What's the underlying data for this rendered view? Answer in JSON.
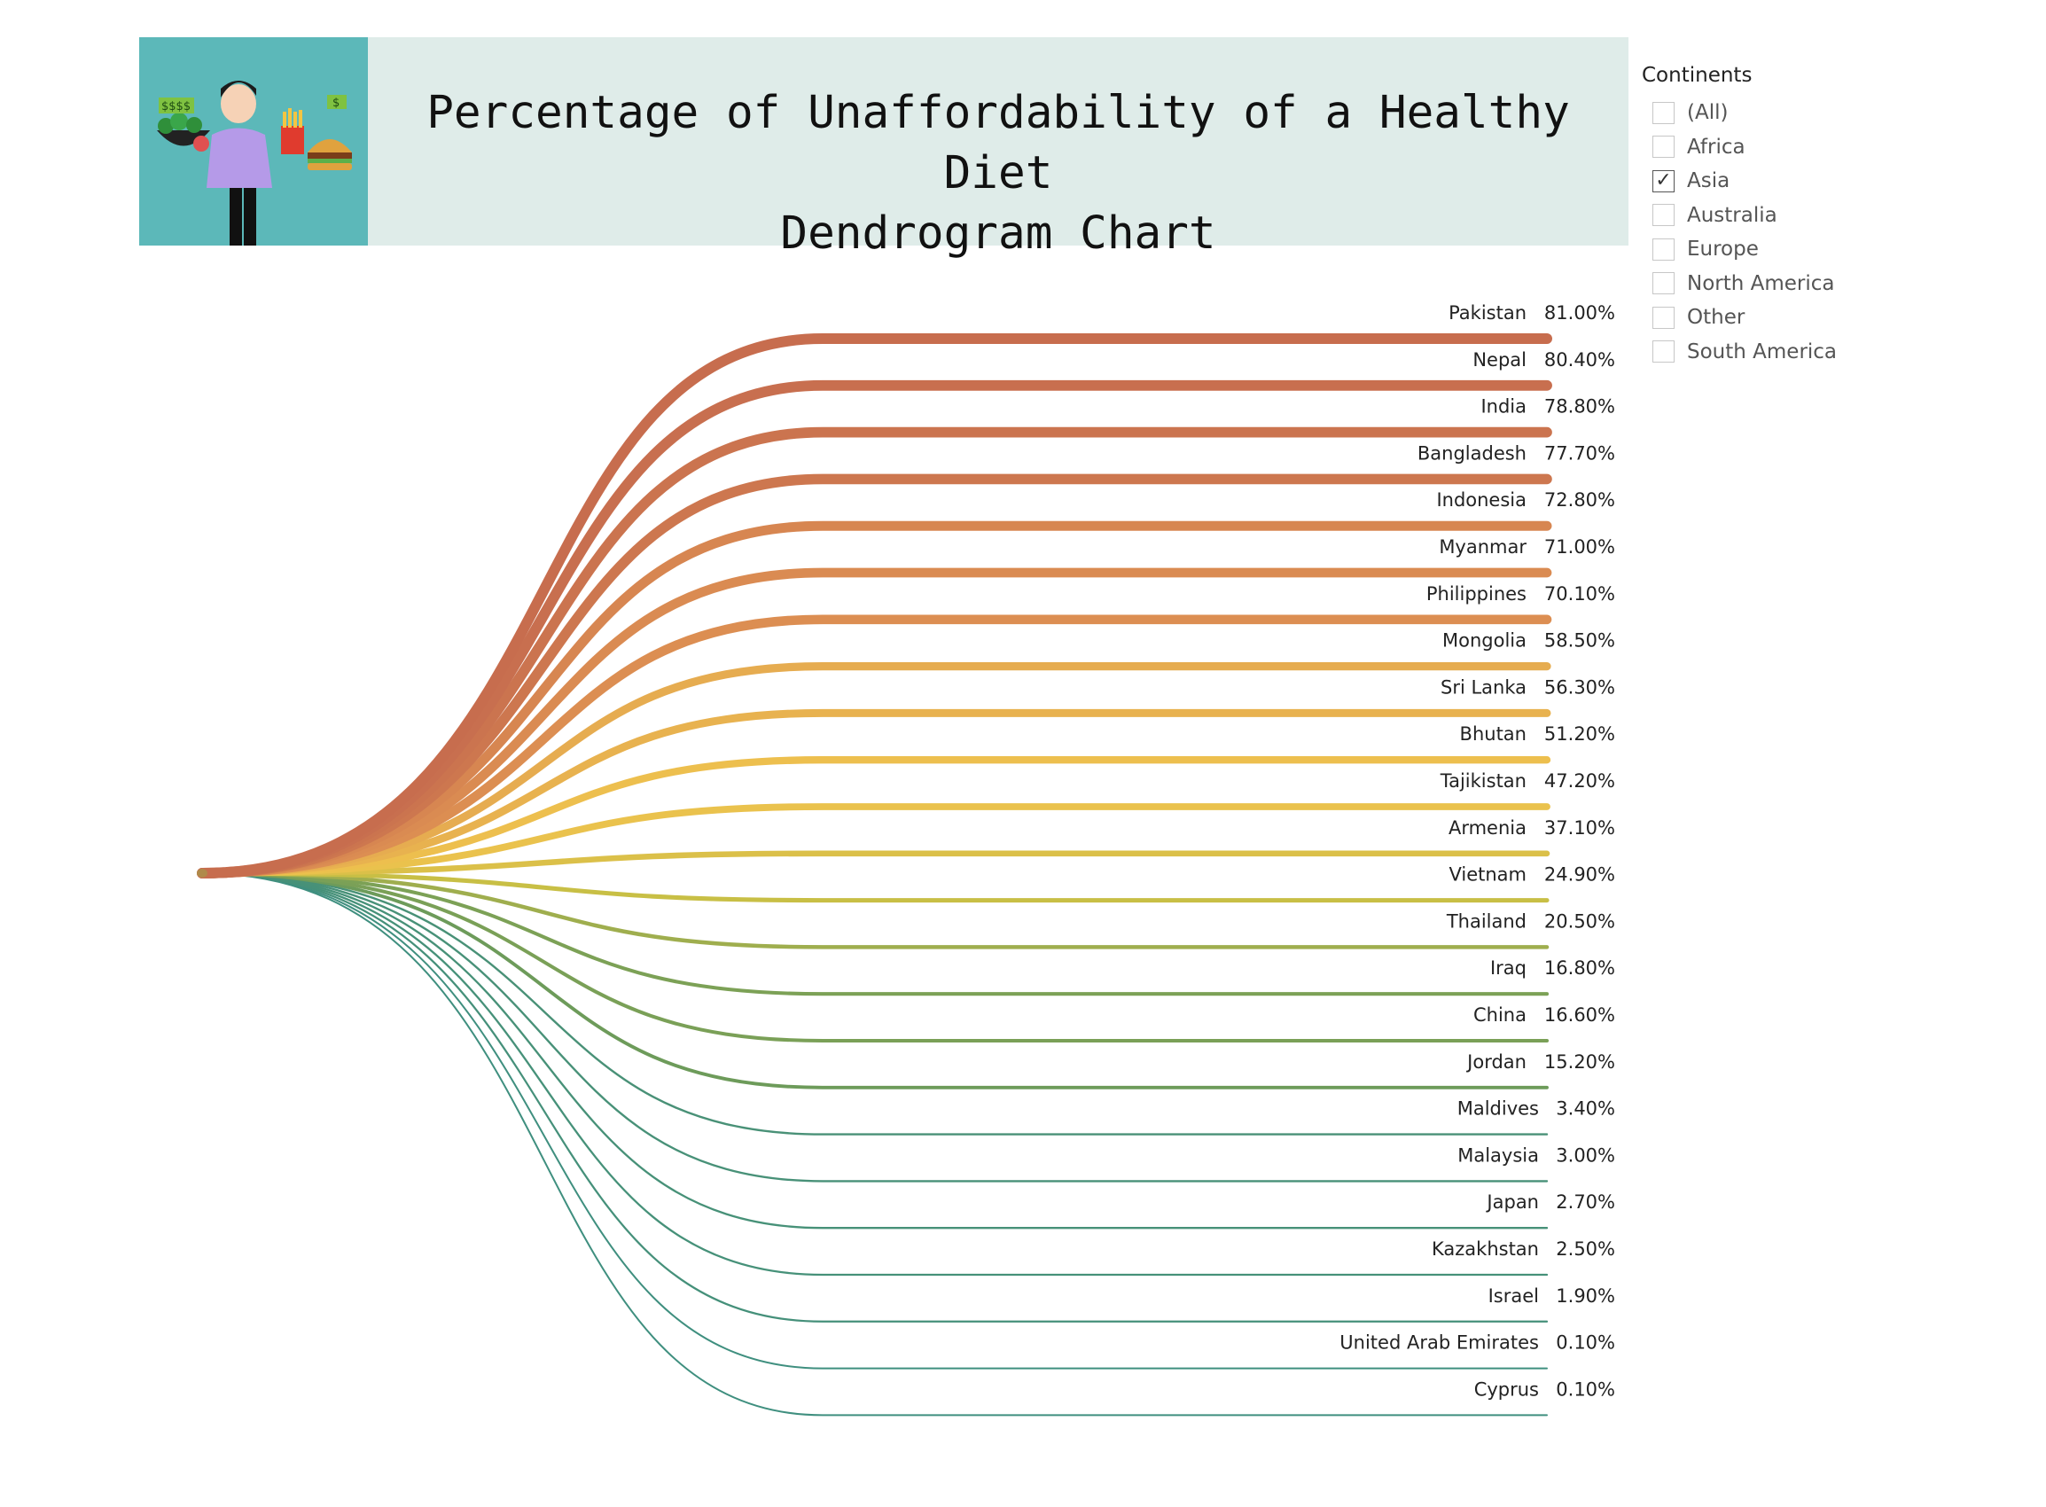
{
  "header": {
    "title_line1": "Percentage of Unaffordability of a Healthy Diet",
    "title_line2": "Dendrogram Chart"
  },
  "filter": {
    "title": "Continents",
    "options": [
      {
        "label": "(All)",
        "checked": false
      },
      {
        "label": "Africa",
        "checked": false
      },
      {
        "label": "Asia",
        "checked": true
      },
      {
        "label": "Australia",
        "checked": false
      },
      {
        "label": "Europe",
        "checked": false
      },
      {
        "label": "North America",
        "checked": false
      },
      {
        "label": "Other",
        "checked": false
      },
      {
        "label": "South America",
        "checked": false
      }
    ]
  },
  "banner_icons": [
    "person-icon",
    "salad-bowl-icon",
    "fries-icon",
    "burger-icon",
    "dollar-sign-icon"
  ],
  "chart_data": {
    "type": "dendrogram",
    "title": "Percentage of Unaffordability of a Healthy Diet Dendrogram Chart",
    "categories": [
      "Pakistan",
      "Nepal",
      "India",
      "Bangladesh",
      "Indonesia",
      "Myanmar",
      "Philippines",
      "Mongolia",
      "Sri Lanka",
      "Bhutan",
      "Tajikistan",
      "Armenia",
      "Vietnam",
      "Thailand",
      "Iraq",
      "China",
      "Jordan",
      "Maldives",
      "Malaysia",
      "Japan",
      "Kazakhstan",
      "Israel",
      "United Arab Emirates",
      "Cyprus"
    ],
    "values": [
      81.0,
      80.4,
      78.8,
      77.7,
      72.8,
      71.0,
      70.1,
      58.5,
      56.3,
      51.2,
      47.2,
      37.1,
      24.9,
      20.5,
      16.8,
      16.6,
      15.2,
      3.4,
      3.0,
      2.7,
      2.5,
      1.9,
      0.1,
      0.1
    ],
    "labels": [
      "81.00%",
      "80.40%",
      "78.80%",
      "77.70%",
      "72.80%",
      "71.00%",
      "70.10%",
      "58.50%",
      "56.30%",
      "51.20%",
      "47.20%",
      "37.10%",
      "24.90%",
      "20.50%",
      "16.80%",
      "16.60%",
      "15.20%",
      "3.40%",
      "3.00%",
      "2.70%",
      "2.50%",
      "1.90%",
      "0.10%",
      "0.10%"
    ],
    "color_scale": [
      "#3f8f7f",
      "#6b9a5a",
      "#c9bf45",
      "#eec24e",
      "#dc8e52",
      "#c56a4e"
    ]
  }
}
